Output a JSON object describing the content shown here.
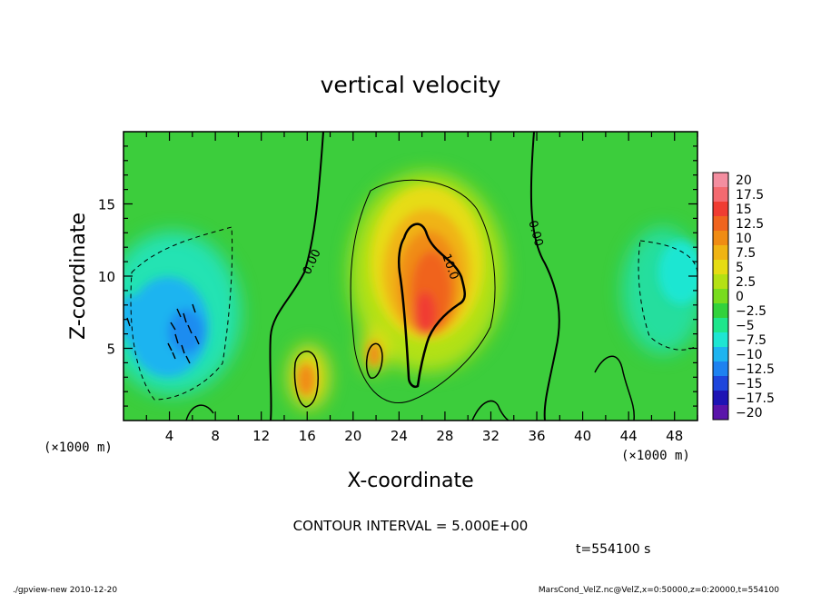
{
  "chart_data": {
    "type": "heatmap",
    "title": "vertical velocity",
    "xlabel": "X-coordinate",
    "ylabel": "Z-coordinate",
    "x_unit": "(×1000 m)",
    "y_unit": "(×1000 m)",
    "xlim": [
      0,
      50
    ],
    "ylim": [
      0,
      20
    ],
    "x_ticks": [
      4,
      8,
      12,
      16,
      20,
      24,
      28,
      32,
      36,
      40,
      44,
      48
    ],
    "y_ticks": [
      5,
      10,
      15
    ],
    "colorbar": {
      "levels": [
        "20",
        "17.5",
        "15",
        "12.5",
        "10",
        "7.5",
        "5",
        "2.5",
        "0",
        "−2.5",
        "−5",
        "−7.5",
        "−10",
        "−12.5",
        "−15",
        "−17.5",
        "−20"
      ],
      "colors": [
        "#f48ea0",
        "#f46a70",
        "#f03c32",
        "#f0641e",
        "#f08c14",
        "#f0b414",
        "#e6dc14",
        "#b4e114",
        "#78dc1e",
        "#32d23c",
        "#1ee68c",
        "#1ee6d2",
        "#1eb4f0",
        "#1e82f0",
        "#1e46dc",
        "#1e14b4",
        "#5a14aa"
      ]
    },
    "contour_labels": [
      "0.00",
      "0.00",
      "10.0"
    ],
    "contour_interval": "CONTOUR INTERVAL = 5.000E+00",
    "time": "t=554100 s",
    "features": [
      {
        "x": 26.5,
        "z": 8,
        "value": 15
      },
      {
        "x": 15.5,
        "z": 3,
        "value": 7.5
      },
      {
        "x": 22,
        "z": 4.5,
        "value": 7.5
      },
      {
        "x": 5,
        "z": 7,
        "value": -7.5
      },
      {
        "x": 1,
        "z": 7,
        "value": -7.5
      },
      {
        "x": 47,
        "z": 10,
        "value": -5
      }
    ]
  },
  "footer": {
    "left": "./gpview-new  2010-12-20",
    "right": "MarsCond_VelZ.nc@VelZ,x=0:50000,z=0:20000,t=554100"
  },
  "colors": {
    "background": "#3ccd3c",
    "frame": "#000000"
  }
}
